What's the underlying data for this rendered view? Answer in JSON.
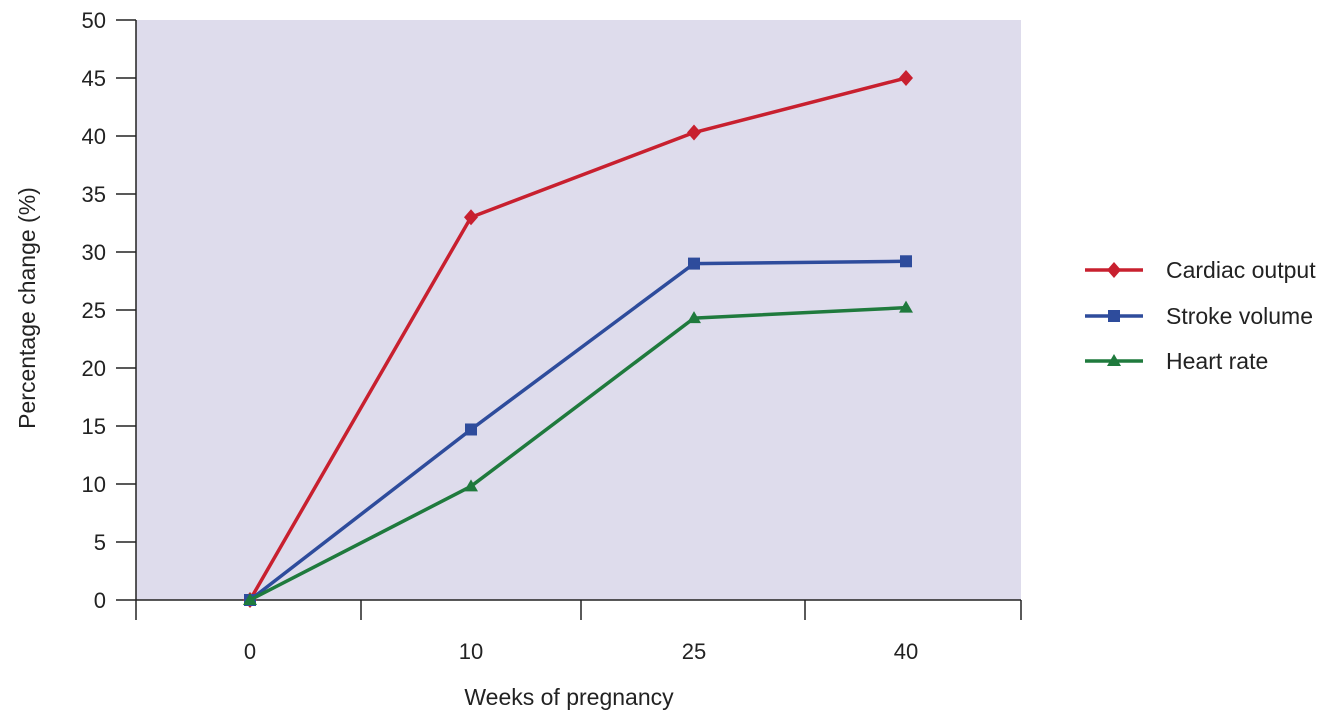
{
  "chart_data": {
    "type": "line",
    "categories": [
      "0",
      "10",
      "25",
      "40"
    ],
    "xlabel": "Weeks of pregnancy",
    "ylabel": "Percentage change (%)",
    "ylim": [
      0,
      50
    ],
    "yticks": [
      0,
      5,
      10,
      15,
      20,
      25,
      30,
      35,
      40,
      45,
      50
    ],
    "grid": false,
    "legend_position": "right",
    "plot_background": "#dedcec",
    "series": [
      {
        "name": "Cardiac output",
        "color": "#c8202f",
        "marker": "diamond",
        "values": [
          0,
          33,
          40.3,
          45
        ]
      },
      {
        "name": "Stroke volume",
        "color": "#2e4c9c",
        "marker": "square",
        "values": [
          0,
          14.7,
          29,
          29.2
        ]
      },
      {
        "name": "Heart rate",
        "color": "#1f7a3d",
        "marker": "triangle",
        "values": [
          0,
          9.8,
          24.3,
          25.2
        ]
      }
    ]
  }
}
